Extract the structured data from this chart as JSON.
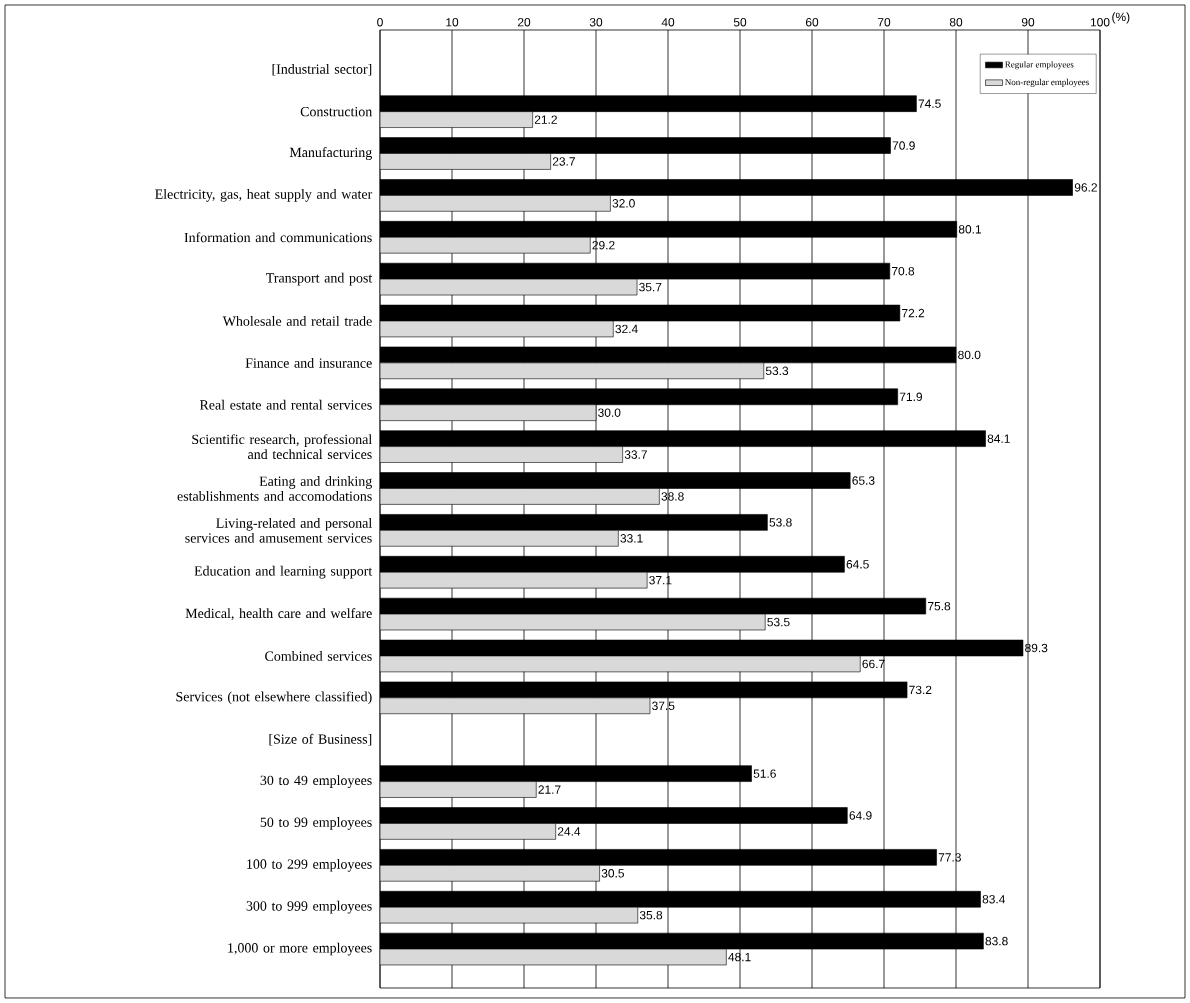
{
  "chart_data": {
    "type": "bar",
    "orientation": "horizontal",
    "xlabel": "(%)",
    "categories": [
      "[Industrial sector]",
      "Construction",
      "Manufacturing",
      "Electricity, gas, heat supply and water",
      "Information and communications",
      "Transport and post",
      "Wholesale and retail trade",
      "Finance and insurance",
      "Real estate and rental services",
      "Scientific research, professional and technical services",
      "Eating and drinking establishments and accomodations",
      "Living-related and personal services and amusement services",
      "Education and learning support",
      "Medical, health care and welfare",
      "Combined services",
      "Services (not elsewhere classified)",
      "[Size of Business]",
      "30 to 49 employees",
      "50 to 99 employees",
      "100 to 299 employees",
      "300 to 999 employees",
      "1,000 or more employees"
    ],
    "series": [
      {
        "name": "Regular employees",
        "color": "#000000",
        "values": [
          null,
          74.5,
          70.9,
          96.2,
          80.1,
          70.8,
          72.2,
          80.0,
          71.9,
          84.1,
          65.3,
          53.8,
          64.5,
          75.8,
          89.3,
          73.2,
          null,
          51.6,
          64.9,
          77.3,
          83.4,
          83.8
        ],
        "value_labels": [
          null,
          "74.5",
          "70.9",
          "96.2",
          "80.1",
          "70.8",
          "72.2",
          "80.0",
          "71.9",
          "84.1",
          "65.3",
          "53.8",
          "64.5",
          "75.8",
          "89.3",
          "73.2",
          null,
          "51.6",
          "64.9",
          "77.3",
          "83.4",
          "83.8"
        ]
      },
      {
        "name": "Non-regular employees",
        "color": "#d9d9d9",
        "values": [
          null,
          21.2,
          23.7,
          32.0,
          29.2,
          35.7,
          32.4,
          53.3,
          30.0,
          33.7,
          38.8,
          33.1,
          37.1,
          53.5,
          66.7,
          37.5,
          null,
          21.7,
          24.4,
          30.5,
          35.8,
          48.1
        ],
        "value_labels": [
          null,
          "21.2",
          "23.7",
          "32.0",
          "29.2",
          "35.7",
          "32.4",
          "53.3",
          "30.0",
          "33.7",
          "38.8",
          "33.1",
          "37.1",
          "53.5",
          "66.7",
          "37.5",
          null,
          "21.7",
          "24.4",
          "30.5",
          "35.8",
          "48.1"
        ]
      }
    ],
    "xlim": [
      0,
      100
    ],
    "xticks": [
      0,
      10,
      20,
      30,
      40,
      50,
      60,
      70,
      80,
      90,
      100
    ],
    "grid": "x",
    "legend": "top right"
  }
}
